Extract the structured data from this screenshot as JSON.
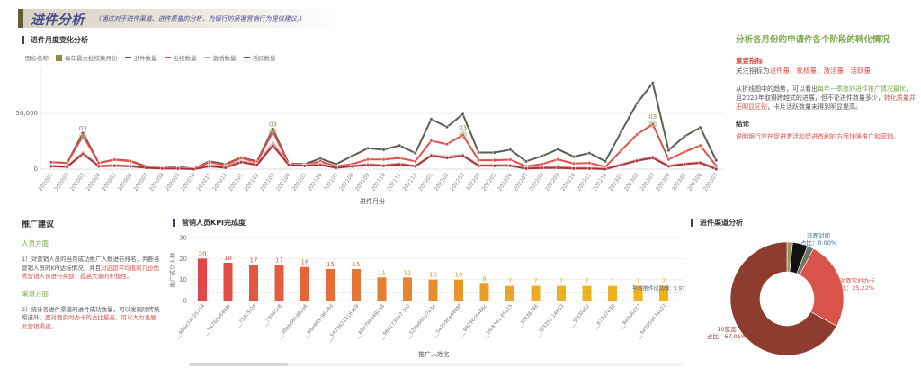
{
  "header": {
    "title": "进件分析",
    "subtitle": "(通过对于进件渠道、进件质量的分析，为银行的获客营销行为提供建议。)"
  },
  "line_section": {
    "title": "进件月度变化分析"
  },
  "right_panel": {
    "title": "分析各月份的申请件各个阶段的转化情况",
    "metric_heading": "重要指标",
    "metric_prefix": "关注指标为",
    "metric_items": "进件量、批核量、激活量、活跃量",
    "p1_a": "从折线图中的趋势，可以看出",
    "p1_b": "每年一季度的进件推广情况最优",
    "p1_c": "，且2023年取得跨越式的进展，但不论进件数量多少，",
    "p1_d": "转化质量并无明显区别",
    "p1_e": "，卡片活跃数量未得到明显提高。",
    "conclusion_heading": "结论",
    "conclusion": "说明银行应在促进激活和促进首刷的方面加强推广和营销。"
  },
  "suggestions": {
    "title": "推广建议",
    "staff_heading": "人员方面",
    "staff_a": "1）对营销人员的当月成功推广人数进行排名，判断各营销人员的KPI达标情况，并且",
    "staff_b": "对远超平均值的几位优秀营销人员进行奖励，提高大家的积极性。",
    "channel_heading": "渠道方面",
    "channel_a": "2）统计各进件渠道的进件成功数量，可以发现除传统渠道外，",
    "channel_b": "面对面实时办卡的占比最高，可以大力发展此营销渠道。"
  },
  "bar_section": {
    "title": "营销人员KPI完成度"
  },
  "pie_section": {
    "title": "进件渠道分析"
  },
  "chart_data": [
    {
      "type": "line",
      "title": "进件月度变化分析",
      "legend_title": "图标名称",
      "legend": [
        "每年最大批核数月份",
        "进件数量",
        "批核数量",
        "激活数量",
        "活跃数量"
      ],
      "xlabel": "进件月份",
      "ylabel": "",
      "yticks": [
        "0",
        "50,000"
      ],
      "ylim": [
        0,
        90000
      ],
      "mark_label": "03",
      "mark_indices": [
        2,
        14,
        26,
        38
      ],
      "x": [
        "202001",
        "202002",
        "202003",
        "202004",
        "202005",
        "202006",
        "202007",
        "202008",
        "202009",
        "202010",
        "202011",
        "202012",
        "202101",
        "202102",
        "202103",
        "202104",
        "202105",
        "202106",
        "202107",
        "202108",
        "202109",
        "202110",
        "202111",
        "202112",
        "202201",
        "202202",
        "202203",
        "202204",
        "202205",
        "202206",
        "202207",
        "202208",
        "202209",
        "202210",
        "202211",
        "202212",
        "202301",
        "202302",
        "202303",
        "202304",
        "202305",
        "202306",
        "202307"
      ],
      "series": [
        {
          "name": "进件数量",
          "color": "#5b5c52",
          "values": [
            6200,
            5500,
            32400,
            5500,
            8700,
            7500,
            2500,
            1200,
            2000,
            500,
            7000,
            4500,
            10500,
            7000,
            36100,
            5000,
            4500,
            9500,
            4500,
            11700,
            18700,
            17400,
            21200,
            14400,
            44800,
            37800,
            49300,
            14900,
            14900,
            17400,
            7000,
            11700,
            17900,
            11200,
            14400,
            7000,
            33400,
            59000,
            77200,
            16900,
            29400,
            37300,
            8000
          ]
        },
        {
          "name": "批核数量",
          "color": "#e0504a",
          "values": [
            6200,
            5500,
            29900,
            5500,
            8500,
            7000,
            2000,
            1200,
            1200,
            500,
            6200,
            3700,
            10000,
            6200,
            33600,
            4500,
            3700,
            7000,
            2500,
            4500,
            8700,
            8700,
            10000,
            7000,
            25400,
            22400,
            30600,
            8000,
            8000,
            8500,
            2500,
            4500,
            8700,
            5000,
            5500,
            2000,
            16700,
            31100,
            40300,
            8700,
            15400,
            21200,
            3000
          ]
        },
        {
          "name": "激活数量",
          "color": "#e8a3a0",
          "values": [
            3000,
            2500,
            14900,
            3000,
            3700,
            3000,
            2000,
            1200,
            1200,
            500,
            3700,
            2500,
            7500,
            4500,
            23700,
            4500,
            3700,
            5000,
            2000,
            3000,
            4500,
            3700,
            5000,
            3000,
            12900,
            11200,
            12900,
            3700,
            3700,
            3700,
            1200,
            2000,
            2500,
            1200,
            1200,
            500,
            4500,
            8000,
            11200,
            3000,
            5000,
            6200,
            1200
          ]
        },
        {
          "name": "活跃数量",
          "color": "#a8333a",
          "values": [
            2500,
            2000,
            13700,
            2500,
            3000,
            2500,
            1200,
            500,
            500,
            0,
            2500,
            1200,
            6200,
            3700,
            21200,
            3700,
            3000,
            3700,
            1200,
            2500,
            3700,
            3000,
            4200,
            2500,
            12000,
            10000,
            12000,
            3000,
            3000,
            3000,
            500,
            1000,
            1200,
            500,
            500,
            0,
            3700,
            7500,
            10000,
            2500,
            4500,
            5500,
            0
          ]
        }
      ]
    },
    {
      "type": "bar",
      "title": "营销人员KPI完成度",
      "xlabel": "推广人姓名",
      "ylabel": "推广成功人数",
      "yticks": [
        "0",
        "10",
        "20",
        "30"
      ],
      "ylim": [
        0,
        30
      ],
      "average_label": "平均推件成功数: 3.97",
      "average": 3.97,
      "categories": [
        "__906e74105714",
        "__5476de6468f",
        "__724c5f24",
        "__73965c8",
        "__90ab661d82a6",
        "__96e465c9658d",
        "__5979621316369",
        "__88e796a482a6",
        "__965173847 3c0",
        "__528b661d743e",
        "__542796a4468f",
        "__89296cb486c",
        "__5fe8741 05a15",
        "__5f936746",
        "__5f3353 14863",
        "__5f33fa52",
        "__673d7438",
        "__8e3a6d27",
        "__9e7959674a27"
      ],
      "values": [
        20,
        18,
        17,
        17,
        16,
        15,
        15,
        11,
        11,
        10,
        10,
        8,
        7,
        7,
        7,
        7,
        7,
        7,
        7
      ]
    },
    {
      "type": "pie",
      "title": "进件渠道分析",
      "slices": [
        {
          "name": "",
          "value": 1.6,
          "color": "#9a9460"
        },
        {
          "name": "",
          "value": 4.3,
          "color": "#111111"
        },
        {
          "name": "",
          "value": 1.87,
          "color": "#6f7466"
        },
        {
          "name": "非面对面",
          "label": "占比：0.00%",
          "value": 0.0,
          "color": "#2e6da4"
        },
        {
          "name": "面对面实时办卡",
          "label": "占比：25.22%",
          "value": 25.22,
          "color": "#d9534a"
        },
        {
          "name": "10蓝宽",
          "label": "占比：67.01%",
          "value": 67.01,
          "color": "#8e3b30"
        }
      ]
    }
  ]
}
